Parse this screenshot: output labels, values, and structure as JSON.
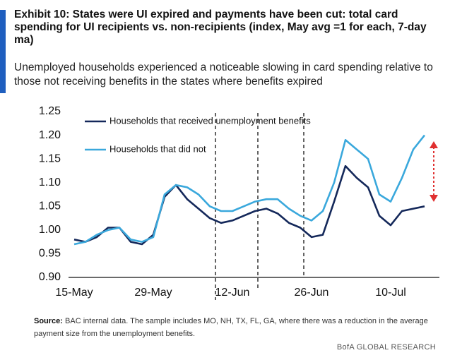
{
  "chart_data": {
    "type": "line",
    "title": "Exhibit 10: States were UI expired and payments have been cut: total card spending for UI recipients vs. non-recipients (index, May avg =1 for each, 7-day ma)",
    "subtitle": "Unemployed households experienced a noticeable slowing in card spending relative to those not receiving benefits in the states where benefits expired",
    "categories": [
      "15-May",
      null,
      null,
      null,
      null,
      null,
      null,
      "29-May",
      null,
      null,
      null,
      null,
      null,
      null,
      "12-Jun",
      null,
      null,
      null,
      null,
      null,
      null,
      "26-Jun",
      null,
      null,
      null,
      null,
      null,
      null,
      "10-Jul",
      null,
      null,
      null
    ],
    "series": [
      {
        "name": "Households that received unemployment benefits",
        "color": "#14285a",
        "values": [
          0.98,
          0.975,
          0.985,
          1.005,
          1.005,
          0.975,
          0.97,
          0.99,
          1.07,
          1.095,
          1.065,
          1.045,
          1.025,
          1.015,
          1.02,
          1.03,
          1.04,
          1.045,
          1.035,
          1.015,
          1.005,
          0.985,
          0.99,
          1.06,
          1.135,
          1.11,
          1.09,
          1.03,
          1.01,
          1.04,
          1.045,
          1.05
        ]
      },
      {
        "name": "Households that did not",
        "color": "#3aa8dc",
        "values": [
          0.97,
          0.975,
          0.99,
          1.0,
          1.005,
          0.98,
          0.975,
          0.985,
          1.075,
          1.095,
          1.09,
          1.075,
          1.05,
          1.04,
          1.04,
          1.05,
          1.06,
          1.065,
          1.065,
          1.045,
          1.03,
          1.02,
          1.04,
          1.1,
          1.19,
          1.17,
          1.15,
          1.075,
          1.06,
          1.11,
          1.17,
          1.2
        ]
      }
    ],
    "ylim": [
      0.9,
      1.25
    ],
    "yticks": [
      {
        "value": 0.9,
        "label": "0.90"
      },
      0.95,
      {
        "value": 1.0,
        "label": "1.00"
      },
      1.05,
      {
        "value": 1.1,
        "label": "1.10"
      },
      1.15,
      {
        "value": 1.2,
        "label": "1.20"
      },
      1.25
    ],
    "source_label": "Source:",
    "source_text": "BAC internal data. The sample includes MO, NH, TX, FL, GA, where there was a reduction in the average payment size from the unemployment benefits.",
    "footer": "BofA GLOBAL RESEARCH"
  }
}
